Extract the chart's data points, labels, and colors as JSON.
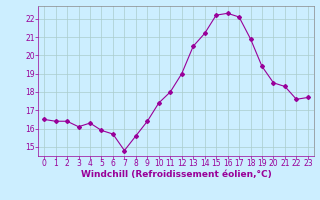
{
  "x": [
    0,
    1,
    2,
    3,
    4,
    5,
    6,
    7,
    8,
    9,
    10,
    11,
    12,
    13,
    14,
    15,
    16,
    17,
    18,
    19,
    20,
    21,
    22,
    23
  ],
  "y": [
    16.5,
    16.4,
    16.4,
    16.1,
    16.3,
    15.9,
    15.7,
    14.8,
    15.6,
    16.4,
    17.4,
    18.0,
    19.0,
    20.5,
    21.2,
    22.2,
    22.3,
    22.1,
    20.9,
    19.4,
    18.5,
    18.3,
    17.6,
    17.7
  ],
  "line_color": "#990099",
  "marker": "D",
  "marker_size": 2,
  "bg_color": "#cceeff",
  "grid_color": "#aacccc",
  "xlabel": "Windchill (Refroidissement éolien,°C)",
  "xlabel_color": "#990099",
  "ylim": [
    14.5,
    22.7
  ],
  "xlim": [
    -0.5,
    23.5
  ],
  "yticks": [
    15,
    16,
    17,
    18,
    19,
    20,
    21,
    22
  ],
  "xticks": [
    0,
    1,
    2,
    3,
    4,
    5,
    6,
    7,
    8,
    9,
    10,
    11,
    12,
    13,
    14,
    15,
    16,
    17,
    18,
    19,
    20,
    21,
    22,
    23
  ],
  "tick_color": "#990099",
  "tick_fontsize": 5.5,
  "xlabel_fontsize": 6.5,
  "spine_color": "#888888",
  "axis_label_color": "#990099"
}
